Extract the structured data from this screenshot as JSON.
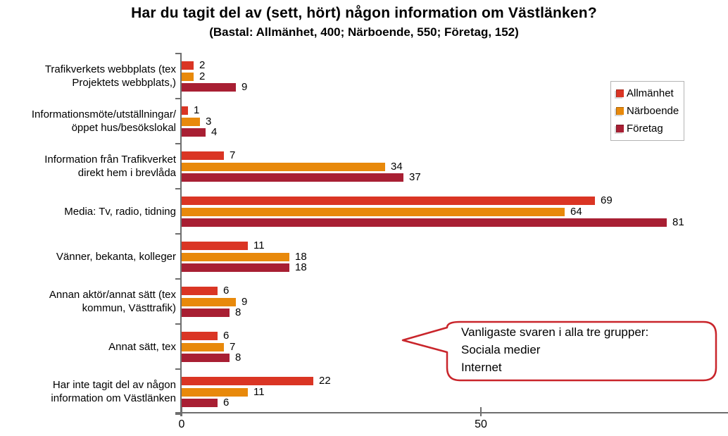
{
  "title": "Har du tagit del av (sett, hört) någon information om Västlänken?",
  "subtitle": "(Bastal: Allmänhet, 400; Närboende, 550; Företag, 152)",
  "chart_data": {
    "type": "bar",
    "orientation": "horizontal",
    "title": "Har du tagit del av (sett, hört) någon information om Västlänken?",
    "subtitle": "(Bastal: Allmänhet, 400; Närboende, 550; Företag, 152)",
    "categories": [
      [
        "Trafikverkets webbplats (tex",
        "Projektets webbplats,)"
      ],
      [
        "Informationsmöte/utställningar/",
        "öppet hus/besökslokal"
      ],
      [
        "Information från Trafikverket",
        "direkt hem i brevlåda"
      ],
      [
        "Media: Tv, radio, tidning"
      ],
      [
        "Vänner, bekanta, kolleger"
      ],
      [
        "Annan aktör/annat sätt (tex",
        "kommun, Västtrafik)"
      ],
      [
        "Annat sätt, tex"
      ],
      [
        "Har inte tagit del av någon",
        "information om Västlänken"
      ]
    ],
    "series": [
      {
        "name": "Allmänhet",
        "color": "#DA3524",
        "values": [
          2,
          1,
          7,
          69,
          11,
          6,
          6,
          22
        ]
      },
      {
        "name": "Närboende",
        "color": "#E8890B",
        "values": [
          2,
          3,
          34,
          64,
          18,
          9,
          7,
          11
        ]
      },
      {
        "name": "Företag",
        "color": "#A81F33",
        "values": [
          9,
          4,
          37,
          81,
          18,
          8,
          8,
          6
        ]
      }
    ],
    "xlim": [
      0,
      91
    ],
    "x_ticks": [
      {
        "label": "0",
        "value": 0
      },
      {
        "label": "50",
        "value": 50
      }
    ],
    "grid": false,
    "legend_position": "right-top",
    "value_labels": true
  },
  "callout": {
    "lines": [
      "Vanligaste svaren i alla tre grupper:",
      "Sociala medier",
      "Internet"
    ],
    "border_color": "#C9252B"
  },
  "colors": {
    "axis": "#6e6e6e",
    "background": "#ffffff"
  }
}
